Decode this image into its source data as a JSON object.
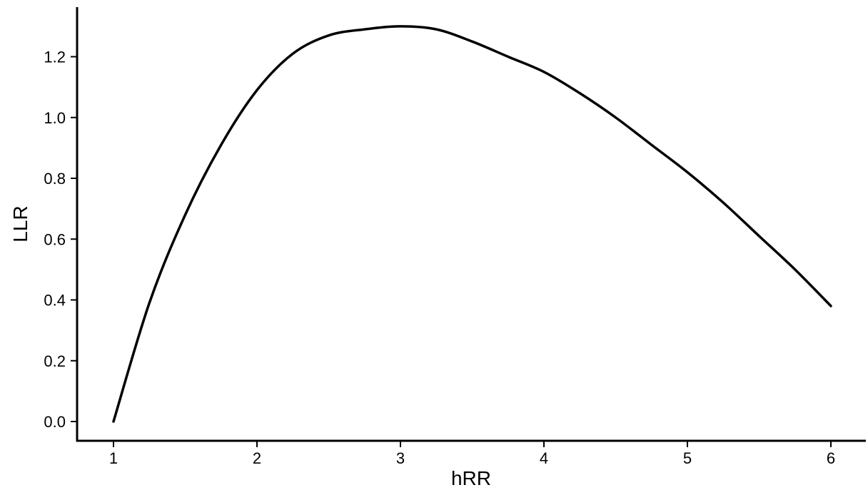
{
  "chart_data": {
    "type": "line",
    "title": "",
    "xlabel": "hRR",
    "ylabel": "LLR",
    "xlim": [
      0.75,
      6.25
    ],
    "ylim": [
      -0.07,
      1.35
    ],
    "x_ticks": [
      1,
      2,
      3,
      4,
      5,
      6
    ],
    "x_tick_labels": [
      "1",
      "2",
      "3",
      "4",
      "5",
      "6"
    ],
    "y_ticks": [
      0.0,
      0.2,
      0.4,
      0.6,
      0.8,
      1.0,
      1.2
    ],
    "y_tick_labels": [
      "0.0",
      "0.2",
      "0.4",
      "0.6",
      "0.8",
      "1.0",
      "1.2"
    ],
    "grid": false,
    "legend": "none",
    "line_color": "#000000",
    "series": [
      {
        "x": [
          1.0,
          1.25,
          1.5,
          1.75,
          2.0,
          2.25,
          2.5,
          2.75,
          3.0,
          3.25,
          3.5,
          3.75,
          4.0,
          4.25,
          4.5,
          4.75,
          5.0,
          5.25,
          5.5,
          5.75,
          6.0
        ],
        "y": [
          0.0,
          0.39,
          0.68,
          0.91,
          1.09,
          1.21,
          1.27,
          1.29,
          1.3,
          1.29,
          1.25,
          1.2,
          1.15,
          1.08,
          1.0,
          0.91,
          0.82,
          0.72,
          0.61,
          0.5,
          0.38
        ]
      }
    ]
  }
}
